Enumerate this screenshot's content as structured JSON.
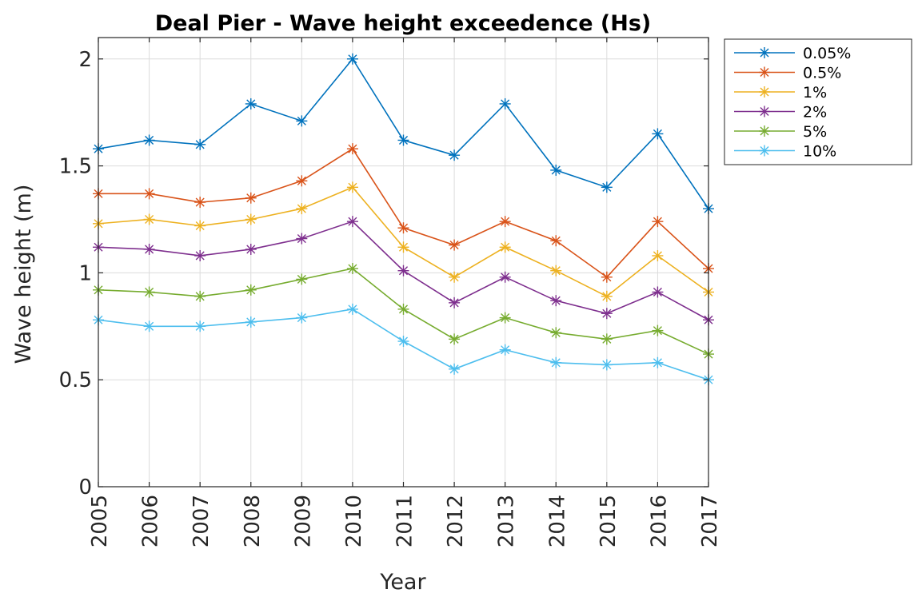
{
  "chart_data": {
    "type": "line",
    "title": "Deal Pier - Wave height exceedence (Hs)",
    "xlabel": "Year",
    "ylabel": "Wave height (m)",
    "x": [
      2005,
      2006,
      2007,
      2008,
      2009,
      2010,
      2011,
      2012,
      2013,
      2014,
      2015,
      2016,
      2017
    ],
    "x_tick_labels": [
      "2005",
      "2006",
      "2007",
      "2008",
      "2009",
      "2010",
      "2011",
      "2012",
      "2013",
      "2014",
      "2015",
      "2016",
      "2017"
    ],
    "y_ticks": [
      0,
      0.5,
      1,
      1.5,
      2
    ],
    "y_tick_labels": [
      "0",
      "0.5",
      "1",
      "1.5",
      "2"
    ],
    "xlim": [
      2005,
      2017
    ],
    "ylim": [
      0,
      2.1
    ],
    "grid": true,
    "legend_position": "outside-top-right",
    "marker": "asterisk",
    "series": [
      {
        "name": "0.05%",
        "color": "#0072BD",
        "values": [
          1.58,
          1.62,
          1.6,
          1.79,
          1.71,
          2.0,
          1.62,
          1.55,
          1.79,
          1.48,
          1.4,
          1.65,
          1.3
        ]
      },
      {
        "name": "0.5%",
        "color": "#D95319",
        "values": [
          1.37,
          1.37,
          1.33,
          1.35,
          1.43,
          1.58,
          1.21,
          1.13,
          1.24,
          1.15,
          0.98,
          1.24,
          1.02
        ]
      },
      {
        "name": "1%",
        "color": "#EDB120",
        "values": [
          1.23,
          1.25,
          1.22,
          1.25,
          1.3,
          1.4,
          1.12,
          0.98,
          1.12,
          1.01,
          0.89,
          1.08,
          0.91
        ]
      },
      {
        "name": "2%",
        "color": "#7E2F8E",
        "values": [
          1.12,
          1.11,
          1.08,
          1.11,
          1.16,
          1.24,
          1.01,
          0.86,
          0.98,
          0.87,
          0.81,
          0.91,
          0.78
        ]
      },
      {
        "name": "5%",
        "color": "#77AC30",
        "values": [
          0.92,
          0.91,
          0.89,
          0.92,
          0.97,
          1.02,
          0.83,
          0.69,
          0.79,
          0.72,
          0.69,
          0.73,
          0.62
        ]
      },
      {
        "name": "10%",
        "color": "#4DBEEE",
        "values": [
          0.78,
          0.75,
          0.75,
          0.77,
          0.79,
          0.83,
          0.68,
          0.55,
          0.64,
          0.58,
          0.57,
          0.58,
          0.5
        ]
      }
    ]
  }
}
